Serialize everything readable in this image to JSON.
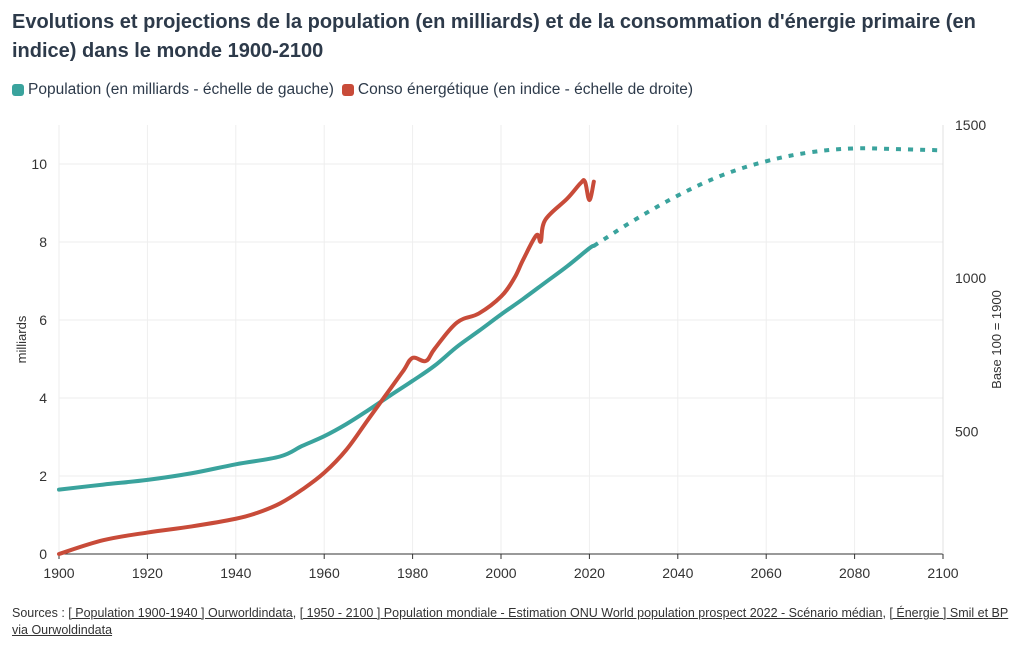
{
  "title": "Evolutions et projections de la population (en milliards) et de la consommation d'énergie primaire (en indice) dans le monde 1900-2100",
  "legend": {
    "population": "Population (en milliards - échelle de gauche)",
    "energie": "Conso énergétique (en indice - échelle de droite)"
  },
  "colors": {
    "population": "#3aa39d",
    "energie": "#c84b39",
    "grid": "#eeeeee"
  },
  "sources": {
    "prefix": "Sources : ",
    "link1": "[ Population 1900-1940 ] Ourworldindata",
    "sep1": ", ",
    "link2": "[ 1950 - 2100 ] Population mondiale - Estimation ONU World population prospect 2022 - Scénario médian",
    "sep2": ", ",
    "link3": "[ Énergie ] Smil et BP via Ourwoldindata"
  },
  "chart_data": {
    "type": "line",
    "x_range": [
      1900,
      2100
    ],
    "x_ticks": [
      1900,
      1920,
      1940,
      1960,
      1980,
      2000,
      2020,
      2040,
      2060,
      2080,
      2100
    ],
    "y_left": {
      "label": "milliards",
      "range": [
        0,
        11
      ],
      "ticks": [
        0,
        2,
        4,
        6,
        8,
        10
      ]
    },
    "y_right": {
      "label": "Base 100 = 1900",
      "range": [
        100,
        1500
      ],
      "ticks": [
        500,
        1000,
        1500
      ]
    },
    "grid": true,
    "legend_position": "top-left",
    "series": [
      {
        "name": "Population (en milliards - échelle de gauche)",
        "axis": "left",
        "style": "solid",
        "points": [
          [
            1900,
            1.65
          ],
          [
            1910,
            1.78
          ],
          [
            1920,
            1.9
          ],
          [
            1930,
            2.07
          ],
          [
            1940,
            2.3
          ],
          [
            1950,
            2.5
          ],
          [
            1955,
            2.77
          ],
          [
            1960,
            3.02
          ],
          [
            1965,
            3.33
          ],
          [
            1970,
            3.69
          ],
          [
            1975,
            4.07
          ],
          [
            1980,
            4.44
          ],
          [
            1985,
            4.83
          ],
          [
            1990,
            5.31
          ],
          [
            1995,
            5.72
          ],
          [
            2000,
            6.14
          ],
          [
            2005,
            6.54
          ],
          [
            2010,
            6.96
          ],
          [
            2015,
            7.38
          ],
          [
            2020,
            7.84
          ],
          [
            2021,
            7.9
          ]
        ]
      },
      {
        "name": "Population (projection)",
        "axis": "left",
        "style": "dashed",
        "points": [
          [
            2021,
            7.9
          ],
          [
            2030,
            8.55
          ],
          [
            2040,
            9.19
          ],
          [
            2050,
            9.71
          ],
          [
            2060,
            10.07
          ],
          [
            2070,
            10.3
          ],
          [
            2080,
            10.4
          ],
          [
            2090,
            10.38
          ],
          [
            2100,
            10.35
          ]
        ]
      },
      {
        "name": "Conso énergétique (en indice - échelle de droite)",
        "axis": "right",
        "style": "solid",
        "points": [
          [
            1900,
            100
          ],
          [
            1910,
            145
          ],
          [
            1920,
            170
          ],
          [
            1930,
            190
          ],
          [
            1940,
            215
          ],
          [
            1945,
            235
          ],
          [
            1950,
            265
          ],
          [
            1955,
            310
          ],
          [
            1960,
            365
          ],
          [
            1965,
            440
          ],
          [
            1970,
            540
          ],
          [
            1975,
            640
          ],
          [
            1978,
            700
          ],
          [
            1980,
            740
          ],
          [
            1983,
            730
          ],
          [
            1985,
            770
          ],
          [
            1990,
            855
          ],
          [
            1995,
            885
          ],
          [
            2000,
            940
          ],
          [
            2003,
            1000
          ],
          [
            2005,
            1060
          ],
          [
            2008,
            1140
          ],
          [
            2009,
            1120
          ],
          [
            2010,
            1190
          ],
          [
            2015,
            1260
          ],
          [
            2018,
            1310
          ],
          [
            2019,
            1315
          ],
          [
            2020,
            1255
          ],
          [
            2021,
            1315
          ]
        ]
      }
    ]
  }
}
